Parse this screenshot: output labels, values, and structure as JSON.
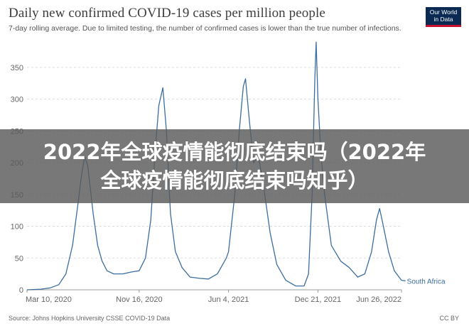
{
  "title": "Daily new confirmed COVID-19 cases per million people",
  "subtitle": "7-day rolling average. Due to limited testing, the number of confirmed cases is lower than the true number of infections.",
  "logo": {
    "line1": "Our World",
    "line2": "in Data"
  },
  "footer": {
    "source": "Source: Johns Hopkins University CSSE COVID-19 Data",
    "license": "CC BY"
  },
  "banner": {
    "text": "2022年全球疫情能彻底结束吗（2022年全球疫情能彻底结束吗知乎）"
  },
  "colors": {
    "series": "#3b6e9e",
    "grid": "#dddddd",
    "banner_bg": "#5a5a5a"
  },
  "chart_data": {
    "type": "line",
    "title": "Daily new confirmed COVID-19 cases per million people",
    "ylim": [
      0,
      380
    ],
    "yticks": [
      0,
      50,
      100,
      150,
      200,
      250,
      300,
      350
    ],
    "xticks": [
      {
        "label": "Mar 10, 2020",
        "date": "2020-03-10"
      },
      {
        "label": "Nov 16, 2020",
        "date": "2020-11-16"
      },
      {
        "label": "Jun 4, 2021",
        "date": "2021-06-04"
      },
      {
        "label": "Dec 21, 2021",
        "date": "2021-12-21"
      },
      {
        "label": "Jun 26, 2022",
        "date": "2022-06-26"
      }
    ],
    "grid": "horizontal dashed",
    "series": [
      {
        "name": "South Africa",
        "points": [
          [
            "2020-03-10",
            0
          ],
          [
            "2020-04-10",
            1
          ],
          [
            "2020-05-01",
            3
          ],
          [
            "2020-05-20",
            8
          ],
          [
            "2020-06-05",
            25
          ],
          [
            "2020-06-20",
            70
          ],
          [
            "2020-07-01",
            130
          ],
          [
            "2020-07-10",
            180
          ],
          [
            "2020-07-17",
            210
          ],
          [
            "2020-07-24",
            195
          ],
          [
            "2020-08-05",
            120
          ],
          [
            "2020-08-15",
            70
          ],
          [
            "2020-08-25",
            45
          ],
          [
            "2020-09-05",
            30
          ],
          [
            "2020-09-20",
            25
          ],
          [
            "2020-10-10",
            25
          ],
          [
            "2020-10-30",
            28
          ],
          [
            "2020-11-16",
            30
          ],
          [
            "2020-11-30",
            50
          ],
          [
            "2020-12-12",
            110
          ],
          [
            "2020-12-22",
            220
          ],
          [
            "2020-12-30",
            290
          ],
          [
            "2021-01-08",
            318
          ],
          [
            "2021-01-16",
            250
          ],
          [
            "2021-01-25",
            120
          ],
          [
            "2021-02-05",
            60
          ],
          [
            "2021-02-20",
            35
          ],
          [
            "2021-03-10",
            20
          ],
          [
            "2021-04-01",
            18
          ],
          [
            "2021-04-20",
            17
          ],
          [
            "2021-05-10",
            25
          ],
          [
            "2021-05-30",
            50
          ],
          [
            "2021-06-04",
            60
          ],
          [
            "2021-06-18",
            150
          ],
          [
            "2021-06-28",
            250
          ],
          [
            "2021-07-07",
            320
          ],
          [
            "2021-07-12",
            332
          ],
          [
            "2021-07-20",
            270
          ],
          [
            "2021-07-30",
            200
          ],
          [
            "2021-08-10",
            210
          ],
          [
            "2021-08-22",
            160
          ],
          [
            "2021-09-05",
            90
          ],
          [
            "2021-09-20",
            40
          ],
          [
            "2021-10-10",
            15
          ],
          [
            "2021-11-01",
            6
          ],
          [
            "2021-11-20",
            6
          ],
          [
            "2021-11-30",
            25
          ],
          [
            "2021-12-08",
            150
          ],
          [
            "2021-12-14",
            330
          ],
          [
            "2021-12-17",
            390
          ],
          [
            "2021-12-21",
            300
          ],
          [
            "2021-12-28",
            210
          ],
          [
            "2022-01-05",
            150
          ],
          [
            "2022-01-20",
            70
          ],
          [
            "2022-02-10",
            45
          ],
          [
            "2022-03-01",
            35
          ],
          [
            "2022-03-20",
            20
          ],
          [
            "2022-04-05",
            25
          ],
          [
            "2022-04-20",
            60
          ],
          [
            "2022-05-01",
            110
          ],
          [
            "2022-05-08",
            128
          ],
          [
            "2022-05-15",
            105
          ],
          [
            "2022-05-28",
            60
          ],
          [
            "2022-06-10",
            30
          ],
          [
            "2022-06-26",
            15
          ],
          [
            "2022-07-05",
            14
          ]
        ]
      }
    ]
  }
}
